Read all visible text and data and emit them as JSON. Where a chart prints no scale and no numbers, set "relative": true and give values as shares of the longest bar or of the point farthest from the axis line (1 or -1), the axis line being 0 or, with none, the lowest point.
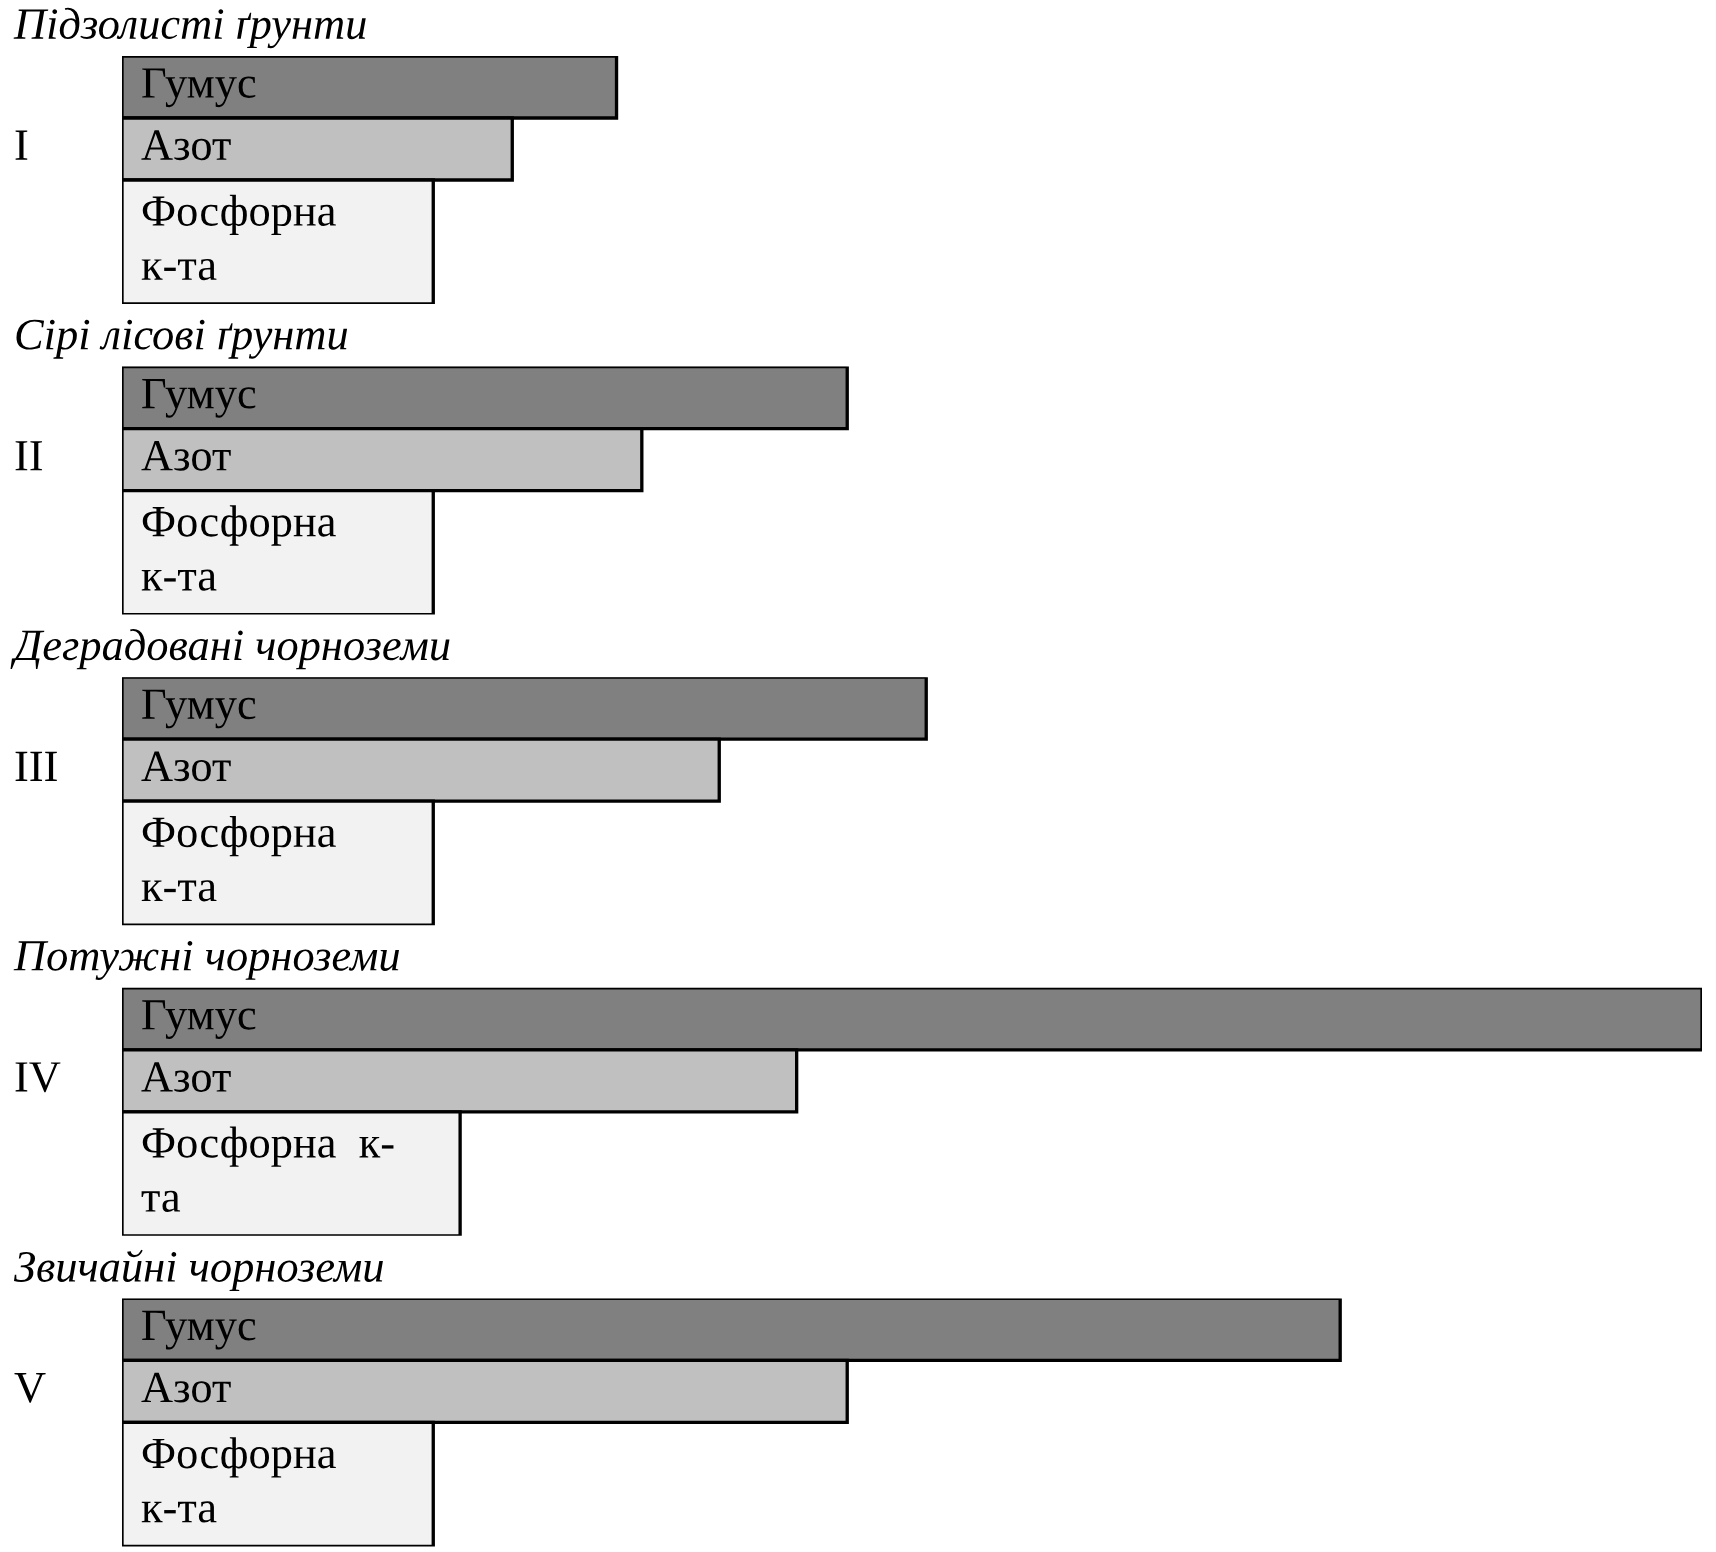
{
  "chart_data": {
    "type": "bar",
    "orientation": "horizontal",
    "relative": true,
    "categories": [
      "Гумус",
      "Азот",
      "Фосфорна\nк-та",
      "Гумус",
      "Азот",
      "Фосфорна\nк-та",
      "Гумус",
      "Азот",
      "Фосфорна\nк-та",
      "Гумус",
      "Азот",
      "Фосфорна  к-\nта",
      "Гумус",
      "Азот",
      "Фосфорна\nк-та"
    ],
    "values": [
      0.313,
      0.247,
      0.197,
      0.459,
      0.329,
      0.197,
      0.509,
      0.378,
      0.197,
      1,
      0.427,
      0.214,
      0.771,
      0.459,
      0.197
    ],
    "colors": [
      "#808080",
      "#c0c0c0",
      "#f2f2f2",
      "#808080",
      "#c0c0c0",
      "#f2f2f2",
      "#808080",
      "#c0c0c0",
      "#f2f2f2",
      "#808080",
      "#c0c0c0",
      "#f2f2f2",
      "#808080",
      "#c0c0c0",
      "#f2f2f2"
    ],
    "annotations": [
      "Підзолисті ґрунти",
      "I",
      "Сірі лісові ґрунти",
      "II",
      "Деградовані чорноземи",
      "III",
      "Потужні чорноземи",
      "IV",
      "Звичайні чорноземи",
      "V"
    ]
  }
}
